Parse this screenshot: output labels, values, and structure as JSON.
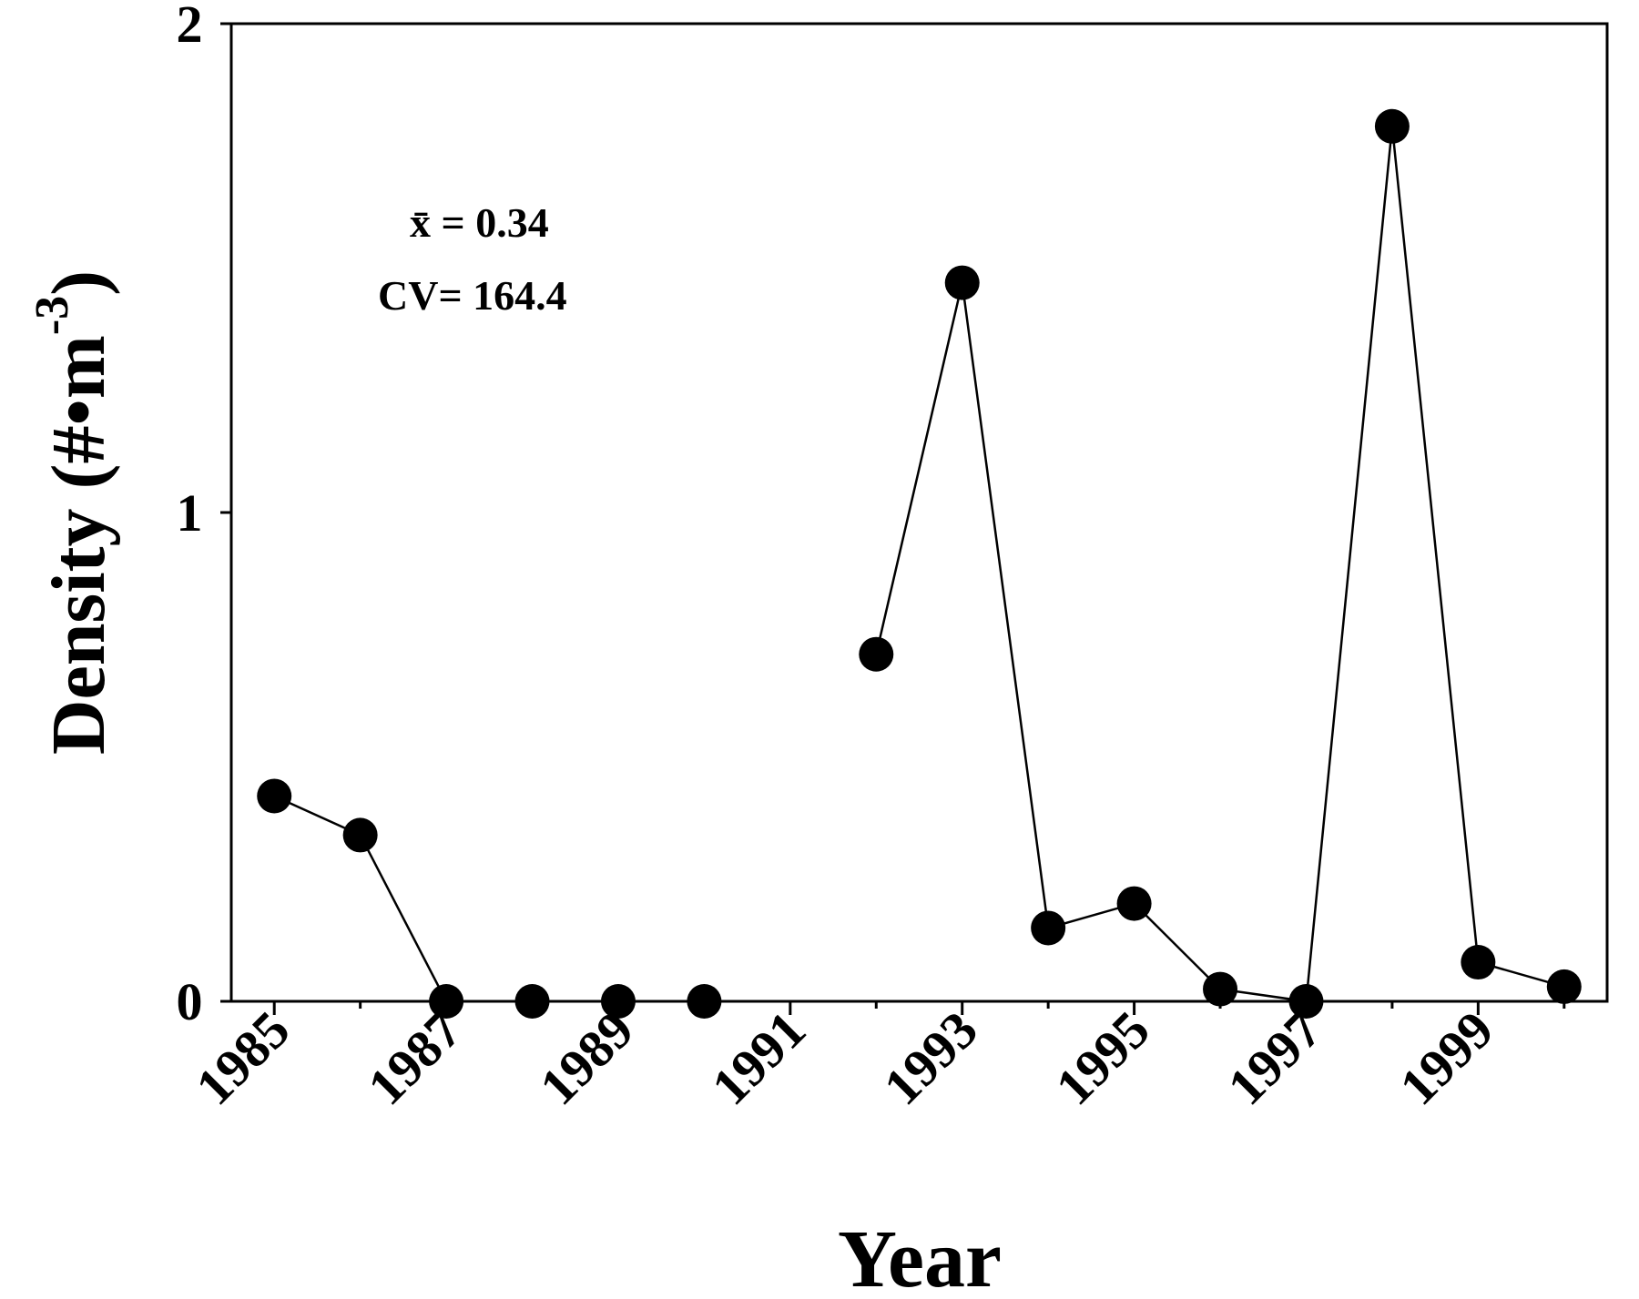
{
  "chart_data": {
    "type": "line",
    "xlabel": "Year",
    "ylabel_main": "Density (#•m",
    "ylabel_sup": "-3",
    "ylabel_close": ")",
    "ylim": [
      0,
      2
    ],
    "xlim": [
      1984.5,
      2000.5
    ],
    "yticks": [
      0,
      1,
      2
    ],
    "xticks": [
      1985,
      1987,
      1989,
      1991,
      1993,
      1995,
      1997,
      1999
    ],
    "annotation_mean": "x̄ = 0.34",
    "annotation_cv": "CV= 164.4",
    "grid": false,
    "series": [
      {
        "segments": [
          [
            [
              1985,
              0.42
            ],
            [
              1986,
              0.34
            ],
            [
              1987,
              0.0
            ],
            [
              1988,
              0.0
            ],
            [
              1989,
              0.0
            ],
            [
              1990,
              0.0
            ]
          ],
          [
            [
              1992,
              0.71
            ],
            [
              1993,
              1.47
            ],
            [
              1994,
              0.15
            ],
            [
              1995,
              0.2
            ],
            [
              1996,
              0.025
            ],
            [
              1997,
              0.0
            ],
            [
              1998,
              1.79
            ],
            [
              1999,
              0.08
            ],
            [
              2000,
              0.03
            ]
          ]
        ]
      }
    ],
    "colors": {
      "line": "#000000",
      "marker": "#000000"
    }
  }
}
